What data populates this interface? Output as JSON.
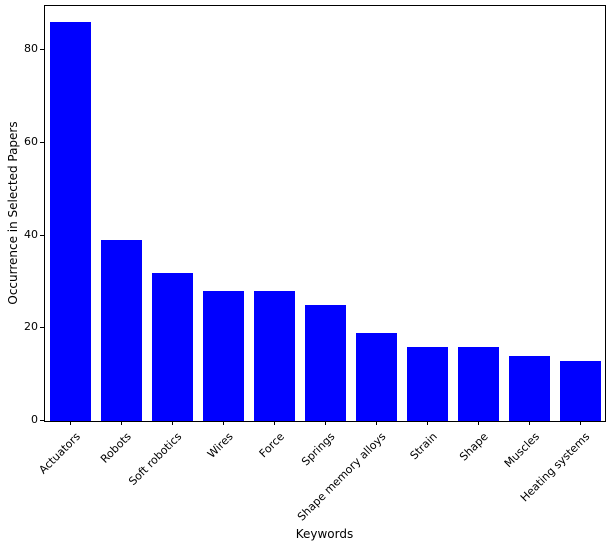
{
  "chart_data": {
    "type": "bar",
    "title": "",
    "xlabel": "Keywords",
    "ylabel": "Occurrence in Selected Papers",
    "categories": [
      "Actuators",
      "Robots",
      "Soft robotics",
      "Wires",
      "Force",
      "Springs",
      "Shape memory alloys",
      "Strain",
      "Shape",
      "Muscles",
      "Heating systems"
    ],
    "values": [
      86,
      39,
      32,
      28,
      28,
      25,
      19,
      16,
      16,
      14,
      13
    ],
    "bar_color": "#0000ff",
    "axis_color": "#000000",
    "background_color": "#ffffff",
    "ylim": [
      0,
      89.5
    ],
    "yticks": [
      0,
      20,
      40,
      60,
      80
    ],
    "bar_width_fraction": 0.8,
    "grid": false,
    "legend": "none",
    "x_tick_rotation_deg": 45
  }
}
